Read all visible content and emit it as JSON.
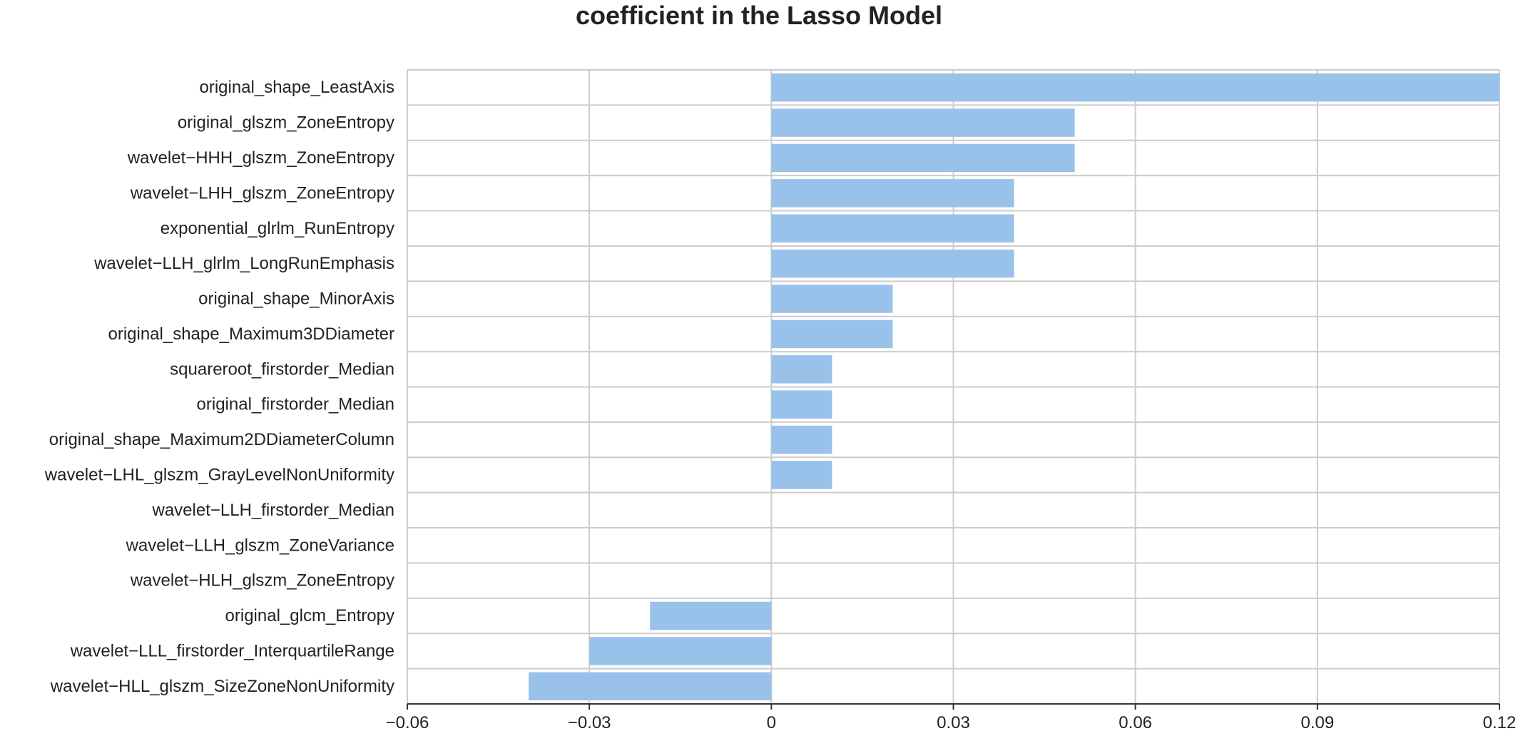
{
  "chart_data": {
    "type": "bar",
    "orientation": "horizontal",
    "title": "coefficient in the Lasso Model",
    "xlabel": "",
    "ylabel": "",
    "xlim": [
      -0.06,
      0.12
    ],
    "xticks": [
      -0.06,
      -0.03,
      0,
      0.03,
      0.06,
      0.09,
      0.12
    ],
    "xtick_labels": [
      "−0.06",
      "−0.03",
      "0",
      "0.03",
      "0.06",
      "0.09",
      "0.12"
    ],
    "grid": true,
    "bar_color": "#99c2ea",
    "grid_color": "#cccccc",
    "categories": [
      "original_shape_LeastAxis",
      "original_glszm_ZoneEntropy",
      "wavelet−HHH_glszm_ZoneEntropy",
      "wavelet−LHH_glszm_ZoneEntropy",
      "exponential_glrlm_RunEntropy",
      "wavelet−LLH_glrlm_LongRunEmphasis",
      "original_shape_MinorAxis",
      "original_shape_Maximum3DDiameter",
      "squareroot_firstorder_Median",
      "original_firstorder_Median",
      "original_shape_Maximum2DDiameterColumn",
      "wavelet−LHL_glszm_GrayLevelNonUniformity",
      "wavelet−LLH_firstorder_Median",
      "wavelet−LLH_glszm_ZoneVariance",
      "wavelet−HLH_glszm_ZoneEntropy",
      "original_glcm_Entropy",
      "wavelet−LLL_firstorder_InterquartileRange",
      "wavelet−HLL_glszm_SizeZoneNonUniformity"
    ],
    "values": [
      0.12,
      0.05,
      0.05,
      0.04,
      0.04,
      0.04,
      0.02,
      0.02,
      0.01,
      0.01,
      0.01,
      0.01,
      0,
      0,
      0,
      -0.02,
      -0.03,
      -0.04
    ]
  }
}
